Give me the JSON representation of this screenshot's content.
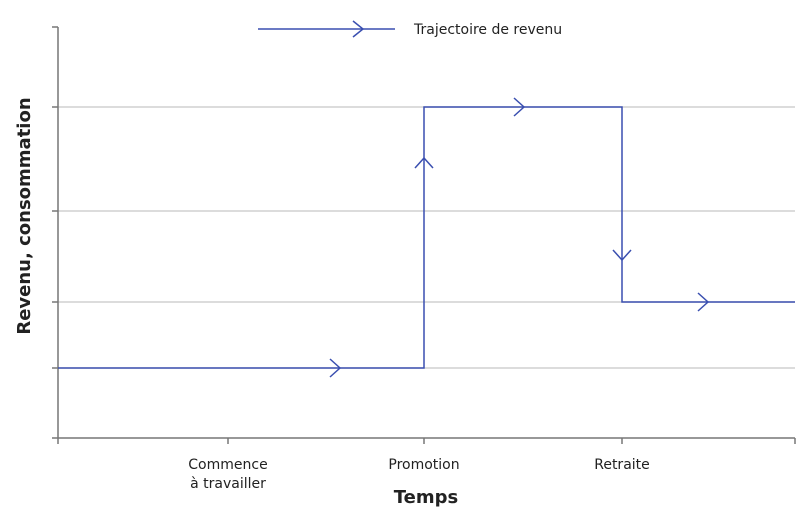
{
  "chart_data": {
    "type": "line",
    "title": "",
    "xlabel": "Temps",
    "ylabel": "Revenu, consommation",
    "x_tick_labels": [
      [
        "Commence",
        "à travailler"
      ],
      [
        "Promotion"
      ],
      [
        "Retraite"
      ]
    ],
    "y_tick_labels": [],
    "grid": "horizontal",
    "legend_placement": "top-center",
    "series": [
      {
        "name": "Trajectoire de revenu",
        "color": "#3a4fb0",
        "step_points": [
          {
            "x": "start",
            "level": "low"
          },
          {
            "x": "Promotion",
            "level": "low"
          },
          {
            "x": "Promotion",
            "level": "high"
          },
          {
            "x": "Retraite",
            "level": "high"
          },
          {
            "x": "Retraite",
            "level": "medium"
          },
          {
            "x": "end",
            "level": "medium"
          }
        ]
      }
    ]
  },
  "colors": {
    "line": "#3a4fb0",
    "axis": "#777777",
    "grid": "#c8c8c8"
  }
}
